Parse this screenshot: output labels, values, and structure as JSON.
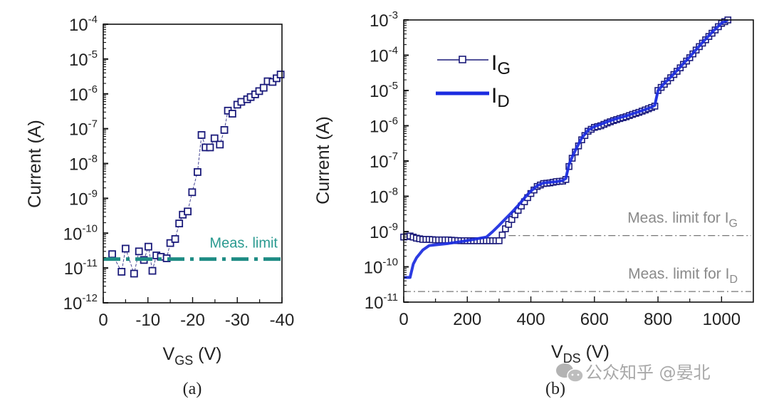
{
  "chart_data": [
    {
      "id": "a",
      "type": "scatter",
      "panel_label": "(a)",
      "title": "",
      "xlabel": "V",
      "xlabel_sub": "GS",
      "xlabel_unit": " (V)",
      "ylabel": "Current (A)",
      "xlim": [
        0,
        -40
      ],
      "ylim_log10": [
        -12,
        -4
      ],
      "yscale": "log",
      "xticks": [
        0,
        -10,
        -20,
        -30,
        -40
      ],
      "xtick_labels": [
        "0",
        "-10",
        "-20",
        "-30",
        "-40"
      ],
      "yticks_exp": [
        -4,
        -5,
        -6,
        -7,
        -8,
        -9,
        -10,
        -11,
        -12
      ],
      "grid": false,
      "series": [
        {
          "name": "I_G",
          "marker": "open-square",
          "line": "thin-dashed",
          "color": "#1a1a7a",
          "x": [
            -2.0,
            -4.1,
            -5.0,
            -6.9,
            -8.0,
            -9.1,
            -10.1,
            -11.0,
            -11.9,
            -12.9,
            -14.2,
            -15.0,
            -16.1,
            -17.0,
            -17.8,
            -18.9,
            -19.9,
            -21.1,
            -22.0,
            -22.9,
            -23.9,
            -24.9,
            -26.1,
            -27.1,
            -27.9,
            -28.9,
            -30.0,
            -30.9,
            -32.2,
            -33.0,
            -34.0,
            -34.9,
            -35.9,
            -36.8,
            -37.9,
            -38.8,
            -39.7
          ],
          "y": [
            2.5e-11,
            7.8e-12,
            3.6e-11,
            6.9e-12,
            3e-11,
            1.7e-11,
            4.1e-11,
            8.3e-12,
            2.3e-11,
            2.1e-11,
            1.9e-11,
            5.2e-11,
            6.8e-11,
            1.9e-10,
            3.4e-10,
            4.2e-10,
            1.5e-09,
            5.7e-09,
            6.6e-08,
            2.9e-08,
            2.9e-08,
            5.3e-08,
            3.5e-08,
            9.2e-08,
            3.3e-07,
            2.7e-07,
            4.9e-07,
            5.9e-07,
            7e-07,
            8.1e-07,
            9.7e-07,
            1.2e-06,
            1.5e-06,
            2.3e-06,
            2.2e-06,
            2.8e-06,
            3.6e-06
          ]
        }
      ],
      "annotations": [
        {
          "type": "hline",
          "name": "Meas. limit",
          "y": 1.8e-11,
          "style": "dash-dot",
          "color": "#1e8c84",
          "label": "Meas. limit",
          "label_color": "#2a9a90"
        }
      ]
    },
    {
      "id": "b",
      "type": "line",
      "panel_label": "(b)",
      "title": "",
      "xlabel": "V",
      "xlabel_sub": "DS",
      "xlabel_unit": " (V)",
      "ylabel": "Current (A)",
      "xlim": [
        0,
        1100
      ],
      "ylim_log10": [
        -11,
        -3
      ],
      "yscale": "log",
      "xticks": [
        0,
        200,
        400,
        600,
        800,
        1000
      ],
      "xtick_labels": [
        "0",
        "200",
        "400",
        "600",
        "800",
        "1000"
      ],
      "yticks_exp": [
        -3,
        -4,
        -5,
        -6,
        -7,
        -8,
        -9,
        -10,
        -11
      ],
      "grid": false,
      "legend": {
        "position": "top-left",
        "entries": [
          {
            "label": "I",
            "sub": "G",
            "style": "line-open-square",
            "color": "#1a1a7a"
          },
          {
            "label": "I",
            "sub": "D",
            "style": "thick-line",
            "color": "#1a2be0"
          }
        ]
      },
      "series": [
        {
          "name": "I_G",
          "marker": "open-square",
          "color": "#1a1a7a",
          "x": [
            0,
            20,
            40,
            60,
            80,
            100,
            120,
            140,
            160,
            180,
            200,
            220,
            240,
            260,
            280,
            300,
            310,
            320,
            330,
            340,
            350,
            360,
            380,
            400,
            420,
            440,
            460,
            480,
            500,
            510,
            520,
            530,
            540,
            560,
            580,
            600,
            620,
            640,
            660,
            680,
            700,
            720,
            740,
            760,
            780,
            790,
            800,
            820,
            840,
            860,
            880,
            900,
            920,
            940,
            960,
            980,
            1000,
            1020
          ],
          "y": [
            7e-10,
            7.5e-10,
            6.5e-10,
            6e-10,
            6e-10,
            5.8e-10,
            5.8e-10,
            5.8e-10,
            5.6e-10,
            5.5e-10,
            5.5e-10,
            5.5e-10,
            5.5e-10,
            5.5e-10,
            5.5e-10,
            5.5e-10,
            8e-10,
            1.2e-09,
            1.6e-09,
            2.2e-09,
            3e-09,
            4e-09,
            7e-09,
            1.2e-08,
            1.9e-08,
            2.3e-08,
            2.4e-08,
            2.6e-08,
            2.7e-08,
            3e-08,
            7e-08,
            1.2e-07,
            1.8e-07,
            4e-07,
            7e-07,
            9e-07,
            1e-06,
            1.2e-06,
            1.4e-06,
            1.6e-06,
            1.8e-06,
            2.1e-06,
            2.4e-06,
            2.8e-06,
            3.3e-06,
            3.6e-06,
            1e-05,
            1.5e-05,
            2.3e-05,
            3.5e-05,
            5.5e-05,
            8.5e-05,
            0.00014,
            0.00022,
            0.00034,
            0.00052,
            0.0008,
            0.001
          ]
        },
        {
          "name": "I_D",
          "marker": "none",
          "color": "#1a2be0",
          "x": [
            0,
            20,
            30,
            40,
            60,
            80,
            100,
            140,
            180,
            220,
            260,
            280,
            300,
            320,
            340,
            360,
            380,
            400,
            420,
            440,
            460,
            480,
            500,
            510,
            520,
            530,
            540,
            560,
            580,
            600,
            620,
            640,
            660,
            680,
            700,
            720,
            740,
            760,
            780,
            790,
            800,
            820,
            840,
            860,
            880,
            900,
            920,
            940,
            960,
            980,
            1000,
            1020
          ],
          "y": [
            5e-11,
            5e-11,
            1.2e-10,
            1.8e-10,
            3e-10,
            4e-10,
            4.2e-10,
            4.6e-10,
            5.2e-10,
            6e-10,
            7e-10,
            1e-09,
            1.5e-09,
            2.3e-09,
            3.5e-09,
            5.5e-09,
            9e-09,
            1.4e-08,
            2e-08,
            2.4e-08,
            2.5e-08,
            2.6e-08,
            2.8e-08,
            3.2e-08,
            8e-08,
            1.3e-07,
            2e-07,
            4.5e-07,
            7.5e-07,
            9.5e-07,
            1.1e-06,
            1.3e-06,
            1.5e-06,
            1.7e-06,
            1.9e-06,
            2.2e-06,
            2.5e-06,
            2.9e-06,
            3.4e-06,
            3.8e-06,
            1e-05,
            1.6e-05,
            2.4e-05,
            3.7e-05,
            5.8e-05,
            9e-05,
            0.000145,
            0.00023,
            0.00036,
            0.00055,
            0.00082,
            0.001
          ]
        }
      ],
      "annotations": [
        {
          "type": "hline",
          "name": "Meas. limit for I_G",
          "y": 7.7e-10,
          "x_start": 330,
          "style": "dash-dot",
          "color": "#777777",
          "label": "Meas. limit for I",
          "label_sub": "G"
        },
        {
          "type": "hline",
          "name": "Meas. limit for I_D",
          "y": 2e-11,
          "x_start": 0,
          "style": "dash-dot",
          "color": "#777777",
          "label": "Meas. limit for I",
          "label_sub": "D"
        }
      ]
    }
  ],
  "watermark": {
    "text": "公众知乎 @晏北",
    "icon": "wechat-icon"
  }
}
